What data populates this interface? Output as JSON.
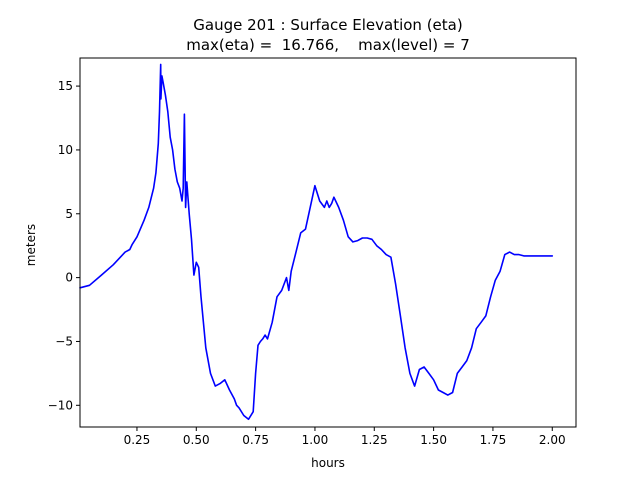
{
  "chart_data": {
    "type": "line",
    "title": "Gauge 201 : Surface Elevation (eta)",
    "subtitle": "max(eta) =  16.766,    max(level) = 7",
    "xlabel": "hours",
    "ylabel": "meters",
    "xlim": [
      0.01,
      2.1
    ],
    "ylim": [
      -11.7,
      17.2
    ],
    "x_ticks": [
      0.25,
      0.5,
      0.75,
      1.0,
      1.25,
      1.5,
      1.75,
      2.0
    ],
    "x_tick_labels": [
      "0.25",
      "0.50",
      "0.75",
      "1.00",
      "1.25",
      "1.50",
      "1.75",
      "2.00"
    ],
    "y_ticks": [
      -10,
      -5,
      0,
      5,
      10,
      15
    ],
    "y_tick_labels": [
      "−10",
      "−5",
      "0",
      "5",
      "10",
      "15"
    ],
    "grid": false,
    "series": [
      {
        "color": "#0000ff",
        "x": [
          0.01,
          0.05,
          0.1,
          0.15,
          0.2,
          0.22,
          0.23,
          0.25,
          0.28,
          0.3,
          0.32,
          0.33,
          0.34,
          0.345,
          0.35,
          0.351,
          0.355,
          0.36,
          0.37,
          0.38,
          0.39,
          0.4,
          0.41,
          0.42,
          0.43,
          0.44,
          0.445,
          0.45,
          0.451,
          0.455,
          0.46,
          0.47,
          0.48,
          0.49,
          0.5,
          0.51,
          0.52,
          0.53,
          0.54,
          0.56,
          0.58,
          0.6,
          0.62,
          0.64,
          0.66,
          0.67,
          0.68,
          0.7,
          0.72,
          0.74,
          0.75,
          0.76,
          0.77,
          0.78,
          0.79,
          0.8,
          0.82,
          0.84,
          0.86,
          0.88,
          0.89,
          0.9,
          0.92,
          0.94,
          0.96,
          0.98,
          1.0,
          1.02,
          1.04,
          1.05,
          1.06,
          1.07,
          1.08,
          1.1,
          1.12,
          1.14,
          1.16,
          1.18,
          1.2,
          1.22,
          1.24,
          1.26,
          1.28,
          1.3,
          1.32,
          1.34,
          1.36,
          1.38,
          1.4,
          1.42,
          1.44,
          1.46,
          1.48,
          1.5,
          1.52,
          1.54,
          1.56,
          1.58,
          1.6,
          1.62,
          1.64,
          1.66,
          1.68,
          1.7,
          1.72,
          1.74,
          1.76,
          1.78,
          1.8,
          1.82,
          1.84,
          1.86,
          1.88,
          1.9,
          1.92,
          1.94,
          1.96,
          1.98,
          2.0
        ],
        "y": [
          -0.8,
          -0.6,
          0.2,
          1.0,
          2.0,
          2.2,
          2.6,
          3.2,
          4.5,
          5.5,
          7.0,
          8.2,
          10.5,
          13.0,
          16.7,
          14.0,
          15.8,
          15.3,
          14.3,
          13.0,
          11.0,
          10.0,
          8.5,
          7.5,
          7.0,
          6.0,
          7.0,
          12.8,
          11.0,
          5.5,
          7.5,
          5.0,
          3.0,
          0.2,
          1.2,
          0.8,
          -1.5,
          -3.5,
          -5.5,
          -7.5,
          -8.5,
          -8.3,
          -8.0,
          -8.8,
          -9.5,
          -10.0,
          -10.2,
          -10.8,
          -11.1,
          -10.5,
          -7.5,
          -5.3,
          -5.0,
          -4.8,
          -4.5,
          -4.8,
          -3.5,
          -1.5,
          -1.0,
          0.0,
          -1.0,
          0.5,
          2.0,
          3.5,
          3.8,
          5.5,
          7.2,
          6.0,
          5.5,
          6.0,
          5.5,
          5.8,
          6.3,
          5.5,
          4.5,
          3.2,
          2.8,
          2.9,
          3.1,
          3.1,
          3.0,
          2.5,
          2.2,
          1.8,
          1.6,
          -0.5,
          -3.0,
          -5.5,
          -7.5,
          -8.5,
          -7.2,
          -7.0,
          -7.5,
          -8.0,
          -8.8,
          -9.0,
          -9.2,
          -9.0,
          -7.5,
          -7.0,
          -6.5,
          -5.5,
          -4.0,
          -3.5,
          -3.0,
          -1.5,
          -0.2,
          0.5,
          1.8,
          2.0,
          1.8,
          1.8,
          1.7,
          1.7,
          1.7,
          1.7,
          1.7,
          1.7,
          1.7
        ]
      }
    ]
  }
}
